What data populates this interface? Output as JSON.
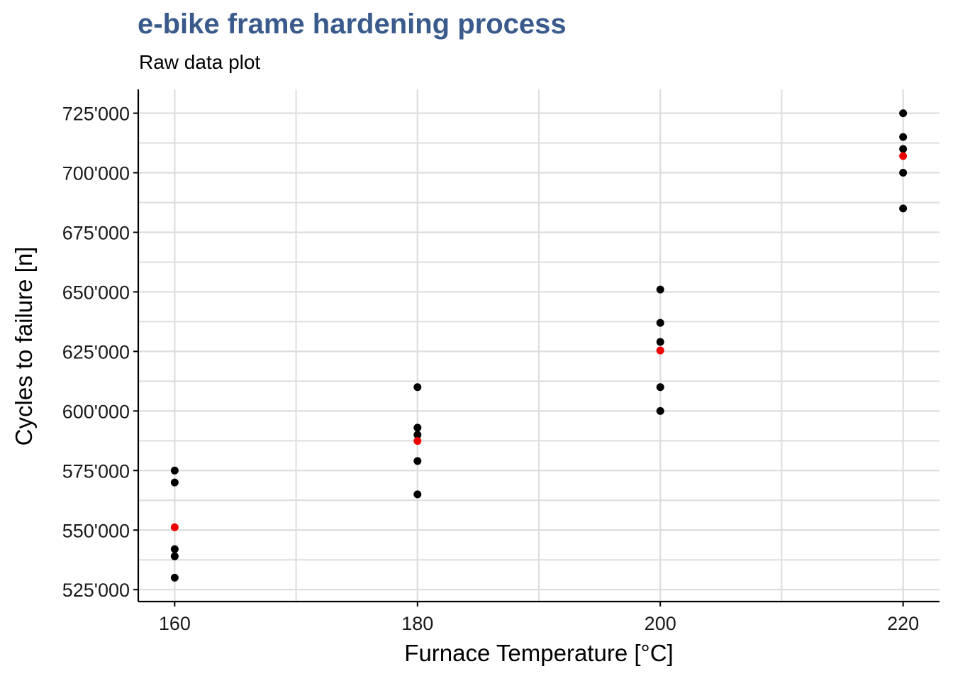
{
  "chart_data": {
    "type": "scatter",
    "title": "e-bike frame hardening process",
    "subtitle": "Raw data plot",
    "xlabel": "Furnace Temperature [°C]",
    "ylabel": "Cycles to failure [n]",
    "xlim": [
      157,
      223
    ],
    "ylim": [
      520000,
      735000
    ],
    "x_ticks": [
      160,
      180,
      200,
      220
    ],
    "x_minor_grid": [
      170,
      190,
      210
    ],
    "y_ticks": [
      525000,
      550000,
      575000,
      600000,
      625000,
      650000,
      675000,
      700000,
      725000
    ],
    "y_tick_labels": [
      "525'000",
      "550'000",
      "575'000",
      "600'000",
      "625'000",
      "650'000",
      "675'000",
      "700'000",
      "725'000"
    ],
    "y_minor_grid": [
      537500,
      562500,
      587500,
      612500,
      637500,
      662500,
      687500,
      712500
    ],
    "grid": true,
    "series": [
      {
        "color": "#000000",
        "points": [
          {
            "x": 160,
            "y": 575000
          },
          {
            "x": 160,
            "y": 570000
          },
          {
            "x": 160,
            "y": 542000
          },
          {
            "x": 160,
            "y": 539000
          },
          {
            "x": 160,
            "y": 530000
          },
          {
            "x": 180,
            "y": 610000
          },
          {
            "x": 180,
            "y": 593000
          },
          {
            "x": 180,
            "y": 590000
          },
          {
            "x": 180,
            "y": 579000
          },
          {
            "x": 180,
            "y": 565000
          },
          {
            "x": 200,
            "y": 651000
          },
          {
            "x": 200,
            "y": 637000
          },
          {
            "x": 200,
            "y": 629000
          },
          {
            "x": 200,
            "y": 610000
          },
          {
            "x": 200,
            "y": 600000
          },
          {
            "x": 220,
            "y": 725000
          },
          {
            "x": 220,
            "y": 715000
          },
          {
            "x": 220,
            "y": 710000
          },
          {
            "x": 220,
            "y": 700000
          },
          {
            "x": 220,
            "y": 685000
          }
        ]
      },
      {
        "color": "#ee0000",
        "points": [
          {
            "x": 160,
            "y": 551200
          },
          {
            "x": 180,
            "y": 587400
          },
          {
            "x": 200,
            "y": 625400
          },
          {
            "x": 220,
            "y": 707000
          }
        ]
      }
    ],
    "colors": {
      "grid": "#dddddd",
      "axis": "#000000",
      "title": "#3a5a8c"
    }
  }
}
